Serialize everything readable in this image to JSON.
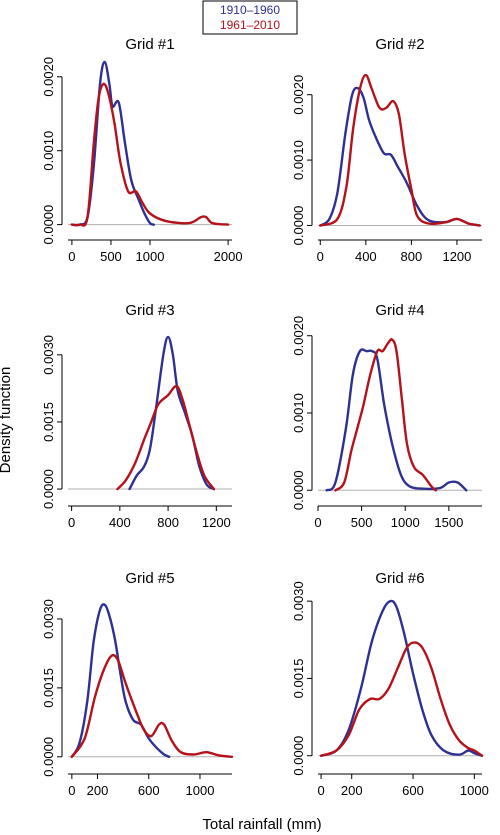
{
  "figure": {
    "ylabel": "Density function",
    "xlabel": "Total rainfall (mm)",
    "legend": {
      "placement": "top-center",
      "entries": [
        {
          "label": "1910–1960",
          "color": "#2e3192"
        },
        {
          "label": "1961–2010",
          "color": "#b5121b"
        }
      ]
    }
  },
  "chart_data": [
    {
      "type": "line",
      "title": "Grid #1",
      "xlim": [
        -50,
        2050
      ],
      "ylim": [
        -0.0001,
        0.0022
      ],
      "xticks": [
        0,
        500,
        1000,
        2000
      ],
      "xtick_labels": [
        "0",
        "500",
        "1000",
        "2000"
      ],
      "yticks": [
        0,
        0.001,
        0.002
      ],
      "ytick_labels": [
        "0.0000",
        "0.0010",
        "0.0020"
      ],
      "series": [
        {
          "name": "1910–1960",
          "color": "#2e3192",
          "points": [
            [
              0,
              0
            ],
            [
              100,
              0
            ],
            [
              200,
              0.0001
            ],
            [
              280,
              0.0008
            ],
            [
              360,
              0.0019
            ],
            [
              420,
              0.0022
            ],
            [
              480,
              0.0019
            ],
            [
              520,
              0.0016
            ],
            [
              600,
              0.00165
            ],
            [
              680,
              0.0011
            ],
            [
              760,
              0.0006
            ],
            [
              850,
              0.00035
            ],
            [
              930,
              0.00015
            ],
            [
              1000,
              2e-05
            ],
            [
              1050,
              0
            ]
          ]
        },
        {
          "name": "1961–2010",
          "color": "#b5121b",
          "points": [
            [
              0,
              0
            ],
            [
              100,
              0
            ],
            [
              200,
              0.0001
            ],
            [
              280,
              0.0011
            ],
            [
              340,
              0.0017
            ],
            [
              400,
              0.0019
            ],
            [
              460,
              0.0018
            ],
            [
              540,
              0.0014
            ],
            [
              620,
              0.00085
            ],
            [
              720,
              0.00045
            ],
            [
              820,
              0.00045
            ],
            [
              900,
              0.0003
            ],
            [
              1000,
              0.00015
            ],
            [
              1200,
              5e-05
            ],
            [
              1500,
              2e-05
            ],
            [
              1650,
              0.0001
            ],
            [
              1720,
              0.0001
            ],
            [
              1800,
              2e-05
            ],
            [
              2000,
              0
            ]
          ]
        }
      ]
    },
    {
      "type": "line",
      "title": "Grid #2",
      "xlim": [
        -20,
        1420
      ],
      "ylim": [
        -0.0001,
        0.0025
      ],
      "xticks": [
        0,
        400,
        800,
        1200
      ],
      "xtick_labels": [
        "0",
        "400",
        "800",
        "1200"
      ],
      "yticks": [
        0,
        0.001,
        0.002
      ],
      "ytick_labels": [
        "0.0000",
        "0.0010",
        "0.0020"
      ],
      "series": [
        {
          "name": "1910–1960",
          "color": "#2e3192",
          "points": [
            [
              0,
              0
            ],
            [
              80,
              0.0001
            ],
            [
              150,
              0.0005
            ],
            [
              220,
              0.0014
            ],
            [
              280,
              0.002
            ],
            [
              330,
              0.0021
            ],
            [
              380,
              0.00195
            ],
            [
              430,
              0.0016
            ],
            [
              500,
              0.0013
            ],
            [
              560,
              0.0011
            ],
            [
              620,
              0.00108
            ],
            [
              680,
              0.0009
            ],
            [
              760,
              0.00065
            ],
            [
              850,
              0.0003
            ],
            [
              950,
              8e-05
            ],
            [
              1100,
              5e-05
            ],
            [
              1200,
              0.0001
            ],
            [
              1300,
              3e-05
            ],
            [
              1400,
              0
            ]
          ]
        },
        {
          "name": "1961–2010",
          "color": "#b5121b",
          "points": [
            [
              0,
              0
            ],
            [
              150,
              0.0001
            ],
            [
              230,
              0.0006
            ],
            [
              290,
              0.0015
            ],
            [
              350,
              0.0021
            ],
            [
              400,
              0.0023
            ],
            [
              450,
              0.0021
            ],
            [
              520,
              0.0018
            ],
            [
              580,
              0.0018
            ],
            [
              640,
              0.0019
            ],
            [
              690,
              0.0017
            ],
            [
              740,
              0.0011
            ],
            [
              800,
              0.00055
            ],
            [
              850,
              0.00015
            ],
            [
              950,
              3e-05
            ],
            [
              1100,
              5e-05
            ],
            [
              1200,
              0.0001
            ],
            [
              1300,
              3e-05
            ],
            [
              1400,
              0
            ]
          ]
        }
      ]
    },
    {
      "type": "line",
      "title": "Grid #3",
      "xlim": [
        -30,
        1330
      ],
      "ylim": [
        -0.0002,
        0.0036
      ],
      "xticks": [
        0,
        400,
        800,
        1200
      ],
      "xtick_labels": [
        "0",
        "400",
        "800",
        "1200"
      ],
      "yticks": [
        0,
        0.0015,
        0.003
      ],
      "ytick_labels": [
        "0.0000",
        "0.0015",
        "0.0030"
      ],
      "series": [
        {
          "name": "1910–1960",
          "color": "#2e3192",
          "points": [
            [
              480,
              0
            ],
            [
              540,
              0.0003
            ],
            [
              600,
              0.0005
            ],
            [
              650,
              0.0009
            ],
            [
              700,
              0.0018
            ],
            [
              760,
              0.003
            ],
            [
              800,
              0.0034
            ],
            [
              840,
              0.003
            ],
            [
              880,
              0.0022
            ],
            [
              940,
              0.0017
            ],
            [
              1000,
              0.0012
            ],
            [
              1060,
              0.0005
            ],
            [
              1120,
              0.0001
            ],
            [
              1180,
              0
            ]
          ]
        },
        {
          "name": "1961–2010",
          "color": "#b5121b",
          "points": [
            [
              380,
              0
            ],
            [
              450,
              0.0002
            ],
            [
              530,
              0.0006
            ],
            [
              600,
              0.0011
            ],
            [
              660,
              0.0015
            ],
            [
              720,
              0.0019
            ],
            [
              800,
              0.0021
            ],
            [
              870,
              0.0023
            ],
            [
              920,
              0.002
            ],
            [
              980,
              0.0014
            ],
            [
              1040,
              0.0008
            ],
            [
              1100,
              0.0003
            ],
            [
              1180,
              0
            ]
          ]
        }
      ]
    },
    {
      "type": "line",
      "title": "Grid #4",
      "xlim": [
        0,
        1880
      ],
      "ylim": [
        -0.0001,
        0.0021
      ],
      "xticks": [
        0,
        500,
        1000,
        1500
      ],
      "xtick_labels": [
        "0",
        "500",
        "1000",
        "1500"
      ],
      "yticks": [
        0,
        0.001,
        0.002
      ],
      "ytick_labels": [
        "0.0000",
        "0.0010",
        "0.0020"
      ],
      "series": [
        {
          "name": "1910–1960",
          "color": "#2e3192",
          "points": [
            [
              100,
              0
            ],
            [
              200,
              0.0001
            ],
            [
              320,
              0.0008
            ],
            [
              400,
              0.0015
            ],
            [
              480,
              0.0018
            ],
            [
              560,
              0.0018
            ],
            [
              620,
              0.0018
            ],
            [
              680,
              0.0017
            ],
            [
              760,
              0.0011
            ],
            [
              850,
              0.0006
            ],
            [
              950,
              0.0002
            ],
            [
              1050,
              5e-05
            ],
            [
              1200,
              2e-05
            ],
            [
              1400,
              3e-05
            ],
            [
              1500,
              0.0001
            ],
            [
              1600,
              0.0001
            ],
            [
              1700,
              0
            ]
          ]
        },
        {
          "name": "1961–2010",
          "color": "#b5121b",
          "points": [
            [
              200,
              0
            ],
            [
              300,
              0.0001
            ],
            [
              380,
              0.0005
            ],
            [
              450,
              0.0008
            ],
            [
              520,
              0.0011
            ],
            [
              600,
              0.0015
            ],
            [
              680,
              0.0018
            ],
            [
              740,
              0.0018
            ],
            [
              800,
              0.0019
            ],
            [
              850,
              0.00195
            ],
            [
              900,
              0.0018
            ],
            [
              960,
              0.0012
            ],
            [
              1020,
              0.0006
            ],
            [
              1100,
              0.0003
            ],
            [
              1200,
              0.0002
            ],
            [
              1300,
              5e-05
            ],
            [
              1350,
              0
            ]
          ]
        }
      ]
    },
    {
      "type": "line",
      "title": "Grid #5",
      "xlim": [
        -30,
        1250
      ],
      "ylim": [
        -0.0002,
        0.0035
      ],
      "xticks": [
        0,
        200,
        600,
        1000
      ],
      "xtick_labels": [
        "0",
        "200",
        "600",
        "1000"
      ],
      "yticks": [
        0,
        0.0015,
        0.003
      ],
      "ytick_labels": [
        "0.0000",
        "0.0015",
        "0.0030"
      ],
      "series": [
        {
          "name": "1910–1960",
          "color": "#2e3192",
          "points": [
            [
              0,
              0
            ],
            [
              60,
              0.0003
            ],
            [
              120,
              0.0012
            ],
            [
              170,
              0.0025
            ],
            [
              220,
              0.0032
            ],
            [
              260,
              0.0033
            ],
            [
              300,
              0.003
            ],
            [
              340,
              0.0025
            ],
            [
              380,
              0.0018
            ],
            [
              420,
              0.0012
            ],
            [
              480,
              0.0008
            ],
            [
              540,
              0.0007
            ],
            [
              600,
              0.0004
            ],
            [
              660,
              0.0002
            ],
            [
              720,
              5e-05
            ],
            [
              760,
              0
            ]
          ]
        },
        {
          "name": "1961–2010",
          "color": "#b5121b",
          "points": [
            [
              0,
              0
            ],
            [
              100,
              0.0004
            ],
            [
              180,
              0.0013
            ],
            [
              250,
              0.0019
            ],
            [
              310,
              0.0022
            ],
            [
              360,
              0.0021
            ],
            [
              420,
              0.0016
            ],
            [
              500,
              0.001
            ],
            [
              560,
              0.0006
            ],
            [
              620,
              0.00045
            ],
            [
              680,
              0.0007
            ],
            [
              720,
              0.0007
            ],
            [
              780,
              0.00035
            ],
            [
              850,
              0.0001
            ],
            [
              950,
              5e-05
            ],
            [
              1050,
              0.0001
            ],
            [
              1150,
              3e-05
            ],
            [
              1250,
              0
            ]
          ]
        }
      ]
    },
    {
      "type": "line",
      "title": "Grid #6",
      "xlim": [
        -20,
        1050
      ],
      "ylim": [
        -0.0002,
        0.0031
      ],
      "xticks": [
        0,
        200,
        600,
        1000
      ],
      "xtick_labels": [
        "0",
        "200",
        "600",
        "1000"
      ],
      "yticks": [
        0,
        0.0015,
        0.003
      ],
      "ytick_labels": [
        "0.0000",
        "0.0015",
        "0.0030"
      ],
      "series": [
        {
          "name": "1910–1960",
          "color": "#2e3192",
          "points": [
            [
              0,
              0
            ],
            [
              100,
              0.0001
            ],
            [
              180,
              0.0005
            ],
            [
              260,
              0.0013
            ],
            [
              330,
              0.0022
            ],
            [
              400,
              0.0028
            ],
            [
              450,
              0.003
            ],
            [
              490,
              0.0029
            ],
            [
              540,
              0.0024
            ],
            [
              600,
              0.0016
            ],
            [
              660,
              0.0009
            ],
            [
              720,
              0.0004
            ],
            [
              800,
              0.0001
            ],
            [
              900,
              2e-05
            ],
            [
              960,
              0.0001
            ],
            [
              1000,
              5e-05
            ],
            [
              1050,
              0
            ]
          ]
        },
        {
          "name": "1961–2010",
          "color": "#b5121b",
          "points": [
            [
              0,
              0
            ],
            [
              100,
              0.0001
            ],
            [
              180,
              0.0004
            ],
            [
              250,
              0.0009
            ],
            [
              320,
              0.0011
            ],
            [
              380,
              0.0011
            ],
            [
              440,
              0.0013
            ],
            [
              500,
              0.0017
            ],
            [
              560,
              0.0021
            ],
            [
              610,
              0.0022
            ],
            [
              660,
              0.0021
            ],
            [
              720,
              0.0017
            ],
            [
              780,
              0.0011
            ],
            [
              840,
              0.0006
            ],
            [
              900,
              0.0003
            ],
            [
              960,
              0.00015
            ],
            [
              1000,
              0.0001
            ],
            [
              1050,
              0
            ]
          ]
        }
      ]
    }
  ]
}
